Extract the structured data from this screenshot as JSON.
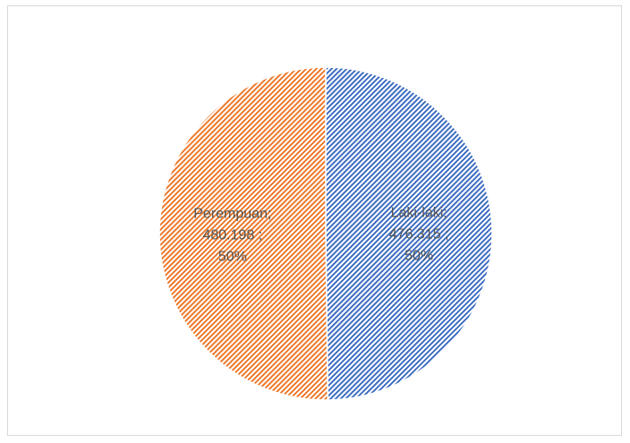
{
  "chart_data": {
    "type": "pie",
    "title": "",
    "slices": [
      {
        "name": "Laki-laki",
        "value": 476315,
        "value_label": "476.315",
        "percent_label": "50%",
        "color": "#4472c4",
        "label_lines": [
          "Laki-laki;",
          "476.315 ;",
          "50%"
        ]
      },
      {
        "name": "Perempuan",
        "value": 480198,
        "value_label": "480.198",
        "percent_label": "50%",
        "color": "#ed7d31",
        "label_lines": [
          "Perempuan;",
          "480.198 ;",
          "50%"
        ]
      }
    ],
    "legend": "none",
    "pattern": "diagonal-hatch"
  }
}
